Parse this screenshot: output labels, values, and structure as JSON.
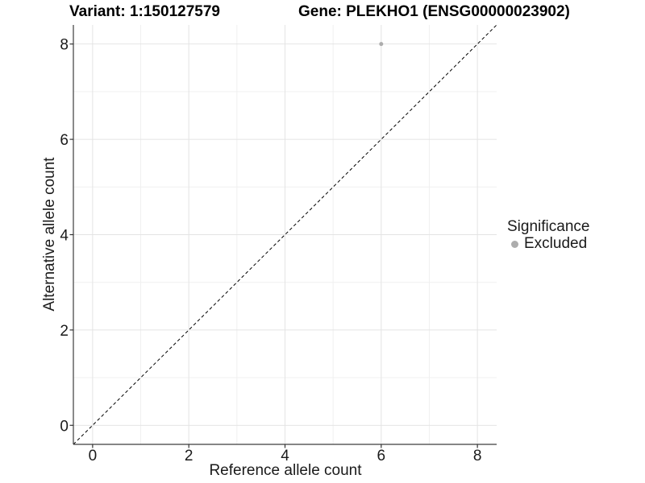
{
  "chart_data": {
    "type": "scatter",
    "title_left": "Variant: 1:150127579",
    "title_right": "Gene: PLEKHO1 (ENSG00000023902)",
    "xlabel": "Reference allele count",
    "ylabel": "Alternative allele count",
    "xlim": [
      -0.4,
      8.4
    ],
    "ylim": [
      -0.4,
      8.4
    ],
    "xticks": [
      0,
      2,
      4,
      6,
      8
    ],
    "yticks": [
      0,
      2,
      4,
      6,
      8
    ],
    "xminor": [
      1,
      3,
      5,
      7
    ],
    "yminor": [
      1,
      3,
      5,
      7
    ],
    "grid": true,
    "points": [
      {
        "x": 6,
        "y": 8,
        "series": "Excluded"
      }
    ],
    "reference_line": {
      "kind": "identity",
      "style": "dashed",
      "from": [
        -0.4,
        -0.4
      ],
      "to": [
        8.4,
        8.4
      ]
    },
    "legend": {
      "title": "Significance",
      "position": "right",
      "items": [
        {
          "label": "Excluded",
          "color": "#adadad",
          "marker": "circle"
        }
      ]
    }
  },
  "colors": {
    "background": "#ffffff",
    "grid_major": "#e4e4e4",
    "grid_minor": "#f0f0f0",
    "axis_line": "#3d3d3d",
    "tick_mark": "#333333",
    "tick_text": "#1a1a1a",
    "point": "#adadad",
    "reference_line": "#000000"
  }
}
